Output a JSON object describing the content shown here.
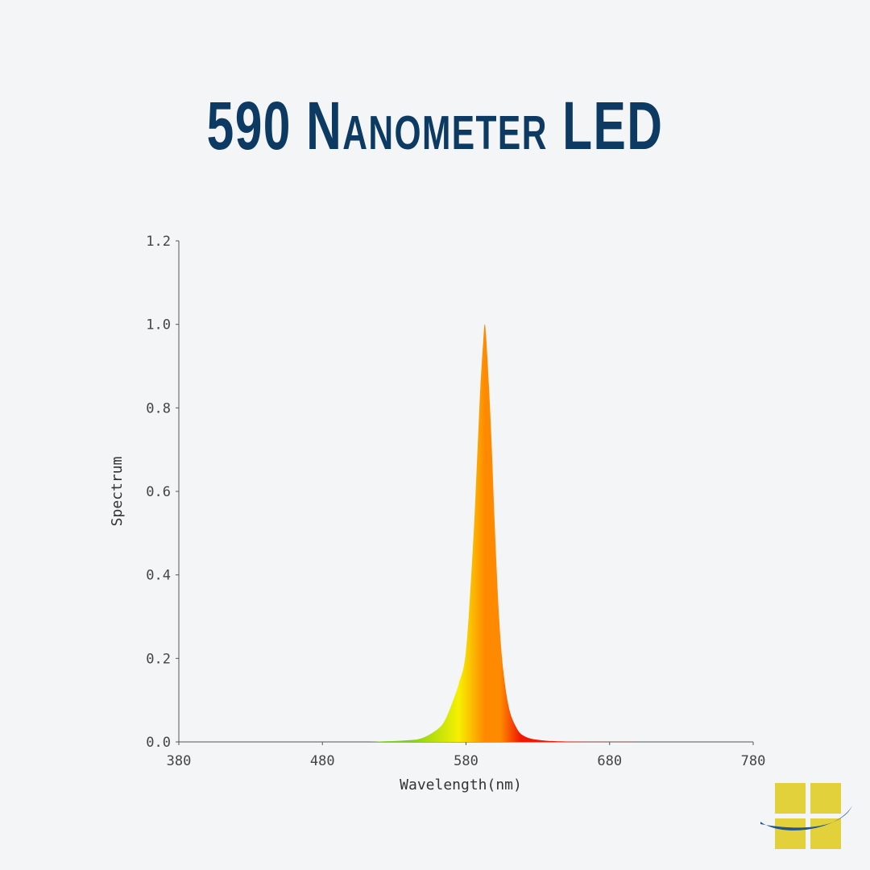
{
  "title": "590 Nanometer LED",
  "chart_data": {
    "type": "area",
    "title": "590 Nanometer LED",
    "xlabel": "Wavelength(nm)",
    "ylabel": "Spectrum",
    "xlim": [
      380,
      780
    ],
    "ylim": [
      0,
      1.2
    ],
    "xticks": [
      "380",
      "480",
      "580",
      "680",
      "780"
    ],
    "yticks": [
      "0.0",
      "0.2",
      "0.4",
      "0.6",
      "0.8",
      "1.0",
      "1.2"
    ],
    "grid": false,
    "x": [
      380,
      500,
      520,
      540,
      550,
      560,
      565,
      570,
      575,
      580,
      585,
      588,
      590,
      592,
      593,
      594,
      596,
      598,
      600,
      603,
      606,
      610,
      615,
      620,
      630,
      650,
      700,
      780
    ],
    "y": [
      0,
      0,
      0.001,
      0.004,
      0.01,
      0.03,
      0.05,
      0.09,
      0.14,
      0.22,
      0.48,
      0.7,
      0.85,
      0.96,
      1.0,
      0.97,
      0.85,
      0.7,
      0.52,
      0.3,
      0.17,
      0.08,
      0.035,
      0.015,
      0.005,
      0.001,
      0,
      0
    ],
    "colors": {
      "green": "#7ccf1a",
      "yellow": "#f6f000",
      "orange": "#ff8a00",
      "red": "#f01800"
    }
  },
  "logo": {
    "squares_color": "#e2d13a",
    "swoosh_color": "#1f5590"
  }
}
